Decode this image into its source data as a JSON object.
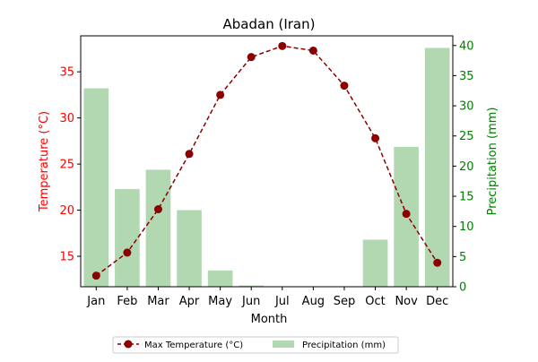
{
  "chart_data": {
    "type": "bar+line",
    "title": "Abadan (Iran)",
    "xlabel": "Month",
    "ylabel_left": "Temperature (°C)",
    "ylabel_right": "Precipitation (mm)",
    "categories": [
      "Jan",
      "Feb",
      "Mar",
      "Apr",
      "May",
      "Jun",
      "Jul",
      "Aug",
      "Sep",
      "Oct",
      "Nov",
      "Dec"
    ],
    "temperature_ylim": [
      11.7,
      38.9
    ],
    "temperature_ticks": [
      15,
      20,
      25,
      30,
      35
    ],
    "precip_ylim": [
      0,
      41.6
    ],
    "precip_ticks": [
      0,
      5,
      10,
      15,
      20,
      25,
      30,
      35,
      40
    ],
    "series": [
      {
        "name": "Max Temperature (°C)",
        "kind": "line",
        "axis": "left",
        "color": "#8b0000",
        "values": [
          12.9,
          15.4,
          20.1,
          26.1,
          32.5,
          36.6,
          37.8,
          37.3,
          33.5,
          27.8,
          19.6,
          14.3
        ]
      },
      {
        "name": "Precipitation (mm)",
        "kind": "bar",
        "axis": "right",
        "color": "#b2d8b2",
        "values": [
          32.9,
          16.2,
          19.4,
          12.7,
          2.7,
          0.2,
          0,
          0,
          0,
          7.8,
          23.2,
          39.6
        ]
      }
    ],
    "legend_position": "bottom-center",
    "grid": false,
    "colors": {
      "temperature_axis": "#ff0000",
      "precip_axis": "#008000",
      "line": "#8b0000",
      "bar": "#b2d8b2"
    }
  }
}
